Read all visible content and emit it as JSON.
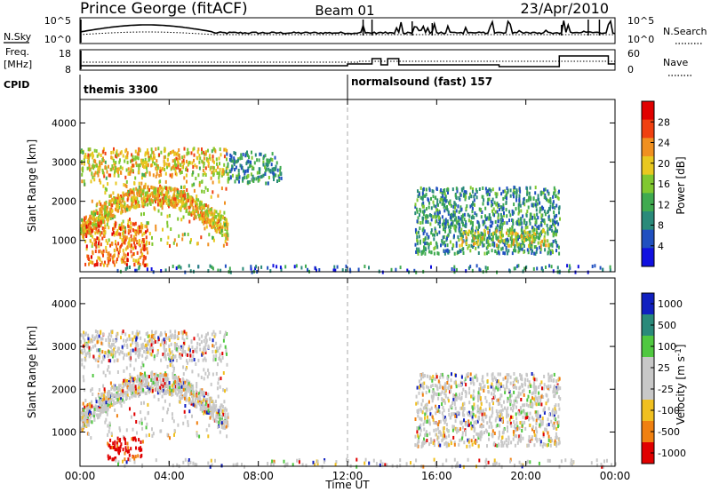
{
  "header": {
    "station": "Prince George (fitACF)",
    "beam": "Beam 01",
    "date": "23/Apr/2010"
  },
  "panels": {
    "nsky": {
      "left_label": "N.Sky",
      "left_ticks": [
        "10^5",
        "10^0"
      ],
      "right_ticks": [
        "10^5",
        "10^0"
      ],
      "right_label": "N.Search"
    },
    "freq": {
      "left_label_top": "Freq.",
      "left_label_bottom": "[MHz]",
      "left_ticks": [
        "18",
        "8"
      ],
      "right_ticks": [
        "60",
        "0"
      ],
      "right_label": "Nave"
    },
    "cpid": {
      "label": "CPID",
      "segments": [
        {
          "name": "themis 3300",
          "start_hour": 0
        },
        {
          "name": "normalsound (fast) 157",
          "start_hour": 12
        }
      ]
    }
  },
  "chart_data": [
    {
      "type": "heatmap",
      "name": "power",
      "ylabel": "Slant Range [km]",
      "ylim": [
        200,
        4600
      ],
      "y_ticks": [
        1000,
        2000,
        3000,
        4000
      ],
      "xlim": [
        0,
        24
      ],
      "colorbar": {
        "label": "Power [dB]",
        "range": [
          0,
          32
        ],
        "ticks": [
          4,
          8,
          12,
          16,
          20,
          24,
          28
        ],
        "colors": [
          "#1010e0",
          "#2050c0",
          "#2a8a7a",
          "#3faa50",
          "#80c830",
          "#e8c820",
          "#f09020",
          "#f04010",
          "#e00000"
        ]
      },
      "regions": [
        {
          "description": "early arc",
          "t": [
            0.0,
            6.6
          ],
          "range": [
            900,
            3400
          ],
          "power": 20
        },
        {
          "description": "near-field echoes",
          "t": [
            0.2,
            3.0
          ],
          "range": [
            400,
            1500
          ],
          "power": 24
        },
        {
          "description": "evening patch",
          "t": [
            6.5,
            9.0
          ],
          "range": [
            2500,
            3300
          ],
          "power": 10
        },
        {
          "description": "late band",
          "t": [
            15.0,
            21.5
          ],
          "range": [
            700,
            2400
          ],
          "power": 10
        },
        {
          "description": "late band core",
          "t": [
            17.0,
            21.0
          ],
          "range": [
            900,
            1300
          ],
          "power": 18
        },
        {
          "description": "ground clutter",
          "t": [
            1.5,
            24.0
          ],
          "range": [
            200,
            400
          ],
          "power": 8
        }
      ]
    },
    {
      "type": "heatmap",
      "name": "velocity",
      "ylabel": "Slant Range [km]",
      "ylim": [
        200,
        4600
      ],
      "y_ticks": [
        1000,
        2000,
        3000,
        4000
      ],
      "xlim": [
        0,
        24
      ],
      "xlabel": "Time UT",
      "x_ticks": [
        "00:00",
        "04:00",
        "08:00",
        "12:00",
        "16:00",
        "20:00",
        "00:00"
      ],
      "colorbar": {
        "label_main": "Velocity",
        "label_unit": "[m s",
        "label_sup": "-1",
        "label_close": "]",
        "ticks": [
          1000,
          500,
          100,
          25,
          -25,
          -100,
          -500,
          -1000
        ],
        "colors": [
          "#1020c0",
          "#2a8a7a",
          "#50c840",
          "#c8c8c8",
          "#c8c8c8",
          "#f0c020",
          "#f08010",
          "#e00000"
        ]
      },
      "regions": [
        {
          "description": "early arc",
          "t": [
            0.0,
            6.6
          ],
          "range": [
            900,
            3400
          ],
          "velocity": 0
        },
        {
          "description": "near-field negative",
          "t": [
            1.2,
            2.8
          ],
          "range": [
            400,
            900
          ],
          "velocity": -800
        },
        {
          "description": "late band",
          "t": [
            15.0,
            21.5
          ],
          "range": [
            700,
            2400
          ],
          "velocity": 0
        },
        {
          "description": "ground clutter",
          "t": [
            1.5,
            24.0
          ],
          "range": [
            200,
            400
          ],
          "velocity": 0
        }
      ]
    }
  ]
}
